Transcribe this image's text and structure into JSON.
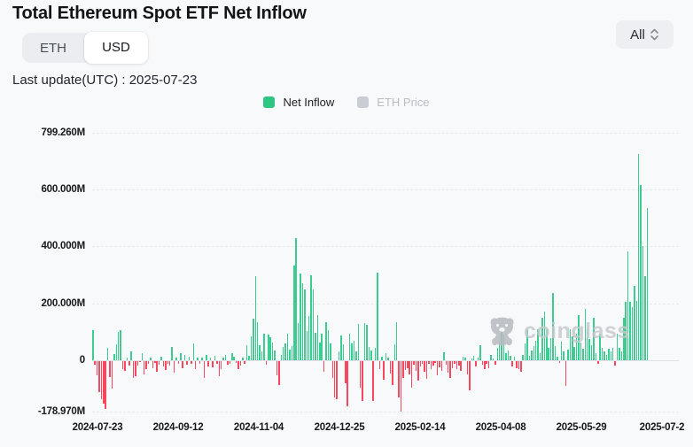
{
  "header": {
    "title": "Total Ethereum Spot ETF Net Inflow",
    "unit_toggle": {
      "options": [
        "ETH",
        "USD"
      ],
      "selected": "USD"
    },
    "range_select": {
      "value": "All"
    },
    "last_update": "Last update(UTC) : 2025-07-23"
  },
  "legend": [
    {
      "label": "Net Inflow",
      "color": "#2fc583",
      "active": true
    },
    {
      "label": "ETH Price",
      "color": "#c9cdd3",
      "active": false
    }
  ],
  "watermark": {
    "text": "coinglass"
  },
  "colors": {
    "background": "#f8f9fa",
    "positive": "#3dcc8f",
    "negative": "#f5485d",
    "grid": "#e7e9ec",
    "text": "#16181b",
    "muted": "#b9bdc4"
  },
  "chart_data": {
    "type": "bar",
    "title": "Total Ethereum Spot ETF Net Inflow",
    "unit": "USD millions (M)",
    "ylim": [
      -178.97,
      799.26
    ],
    "yticks": [
      799.26,
      600,
      400,
      200,
      0,
      -178.97
    ],
    "ytick_labels": [
      "799.260M",
      "600.000M",
      "400.000M",
      "200.000M",
      "0",
      "-178.970M"
    ],
    "xtick_labels": [
      "2024-07-23",
      "2024-09-12",
      "2024-11-04",
      "2024-12-25",
      "2025-02-14",
      "2025-04-08",
      "2025-05-29",
      "2025-07-2"
    ],
    "grid": "dashed-horizontal",
    "legend_position": "top-center",
    "series": [
      {
        "name": "Net Inflow",
        "color_positive": "#3dcc8f",
        "color_negative": "#f5485d",
        "values": [
          107,
          -13,
          -52,
          -110,
          -135,
          -152,
          -170,
          45,
          -58,
          -98,
          22,
          55,
          100,
          105,
          -28,
          -35,
          8,
          -16,
          30,
          -60,
          -55,
          -18,
          -5,
          26,
          -48,
          -30,
          -12,
          10,
          -25,
          -8,
          -38,
          -15,
          12,
          -20,
          -32,
          -10,
          -18,
          48,
          -42,
          8,
          -12,
          25,
          -25,
          20,
          -15,
          12,
          -10,
          58,
          -30,
          11,
          -12,
          8,
          -62,
          18,
          -20,
          10,
          -22,
          15,
          -12,
          -55,
          -28,
          8,
          20,
          -15,
          -10,
          25,
          12,
          -8,
          -30,
          -18,
          10,
          -11,
          52,
          15,
          85,
          146,
          295,
          135,
          52,
          30,
          95,
          -15,
          90,
          80,
          62,
          35,
          -50,
          -85,
          20,
          48,
          60,
          92,
          38,
          50,
          332,
          428,
          130,
          305,
          272,
          248,
          102,
          155,
          300,
          250,
          98,
          158,
          62,
          93,
          -38,
          135,
          105,
          58,
          -60,
          -130,
          -135,
          32,
          88,
          55,
          -78,
          -160,
          92,
          58,
          70,
          30,
          128,
          -95,
          -140,
          130,
          125,
          48,
          35,
          -142,
          45,
          308,
          -30,
          12,
          -68,
          25,
          10,
          -45,
          -85,
          55,
          135,
          -128,
          -179,
          -60,
          -32,
          -25,
          -48,
          -95,
          -15,
          -35,
          -70,
          -20,
          -12,
          -40,
          -65,
          -10,
          -28,
          -18,
          -8,
          -52,
          -22,
          -35,
          28,
          -15,
          -42,
          -60,
          -25,
          -12,
          -30,
          -18,
          -35,
          12,
          8,
          -48,
          -105,
          6,
          15,
          -20,
          10,
          52,
          -15,
          -30,
          -12,
          -25,
          18,
          6,
          -15,
          45,
          65,
          110,
          90,
          25,
          35,
          15,
          -20,
          12,
          -25,
          -30,
          -40,
          20,
          60,
          110,
          15,
          35,
          50,
          70,
          110,
          25,
          148,
          172,
          110,
          45,
          78,
          238,
          50,
          12,
          -8,
          65,
          30,
          -88,
          38,
          110,
          85,
          48,
          95,
          158,
          62,
          40,
          182,
          110,
          75,
          52,
          148,
          25,
          -12,
          95,
          45,
          30,
          20,
          40,
          30,
          45,
          -18,
          95,
          45,
          30,
          148,
          205,
          382,
          206,
          187,
          260,
          208,
          726,
          615,
          400,
          296,
          535
        ]
      }
    ]
  }
}
